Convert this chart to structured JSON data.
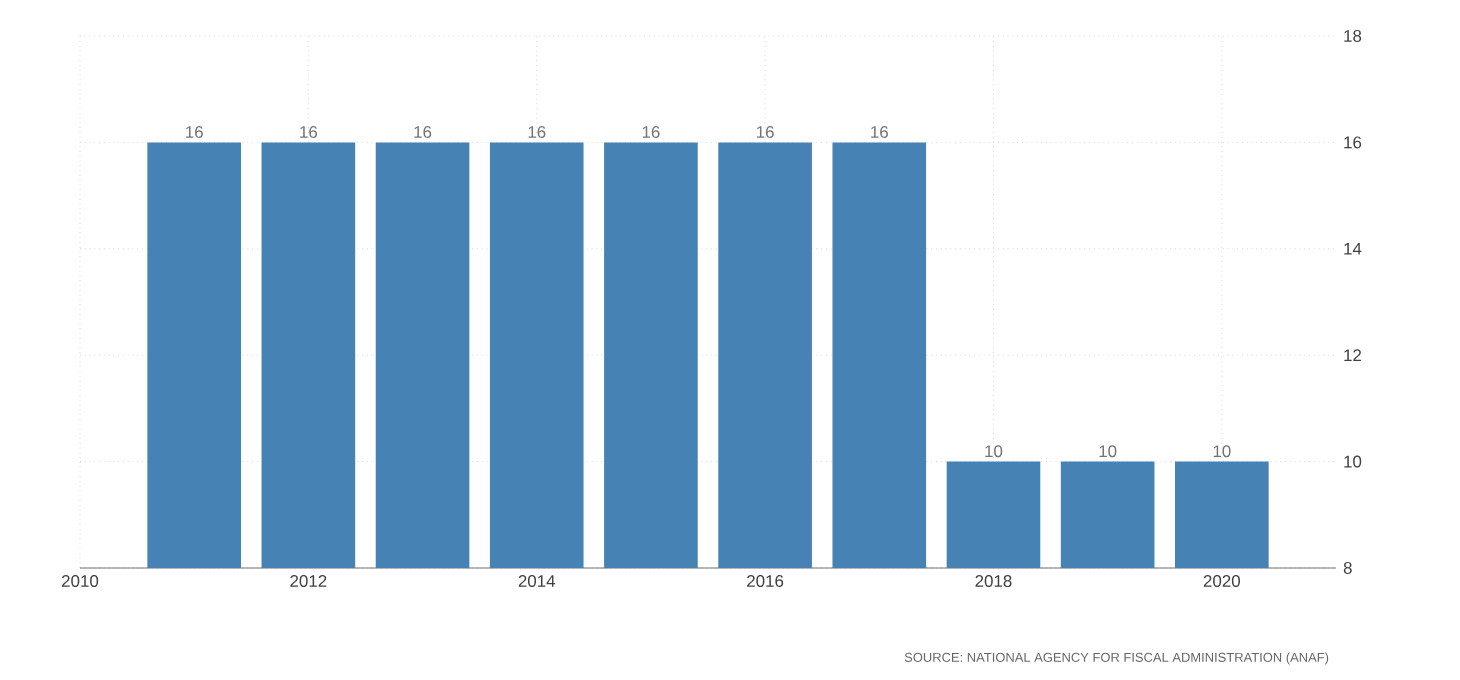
{
  "chart_data": {
    "type": "bar",
    "x": [
      2011,
      2012,
      2013,
      2014,
      2015,
      2016,
      2017,
      2018,
      2019,
      2020
    ],
    "values": [
      16,
      16,
      16,
      16,
      16,
      16,
      16,
      10,
      10,
      10
    ],
    "color": "#4682b4",
    "xlim": [
      2010,
      2021
    ],
    "xticks": [
      2010,
      2012,
      2014,
      2016,
      2018,
      2020
    ],
    "ylim": [
      8,
      18
    ],
    "yticks": [
      8,
      10,
      12,
      14,
      16,
      18
    ],
    "grid": true,
    "data_labels": true,
    "annotations": [
      "SOURCE: NATIONAL AGENCY FOR FISCAL ADMINISTRATION (ANAF)"
    ]
  }
}
